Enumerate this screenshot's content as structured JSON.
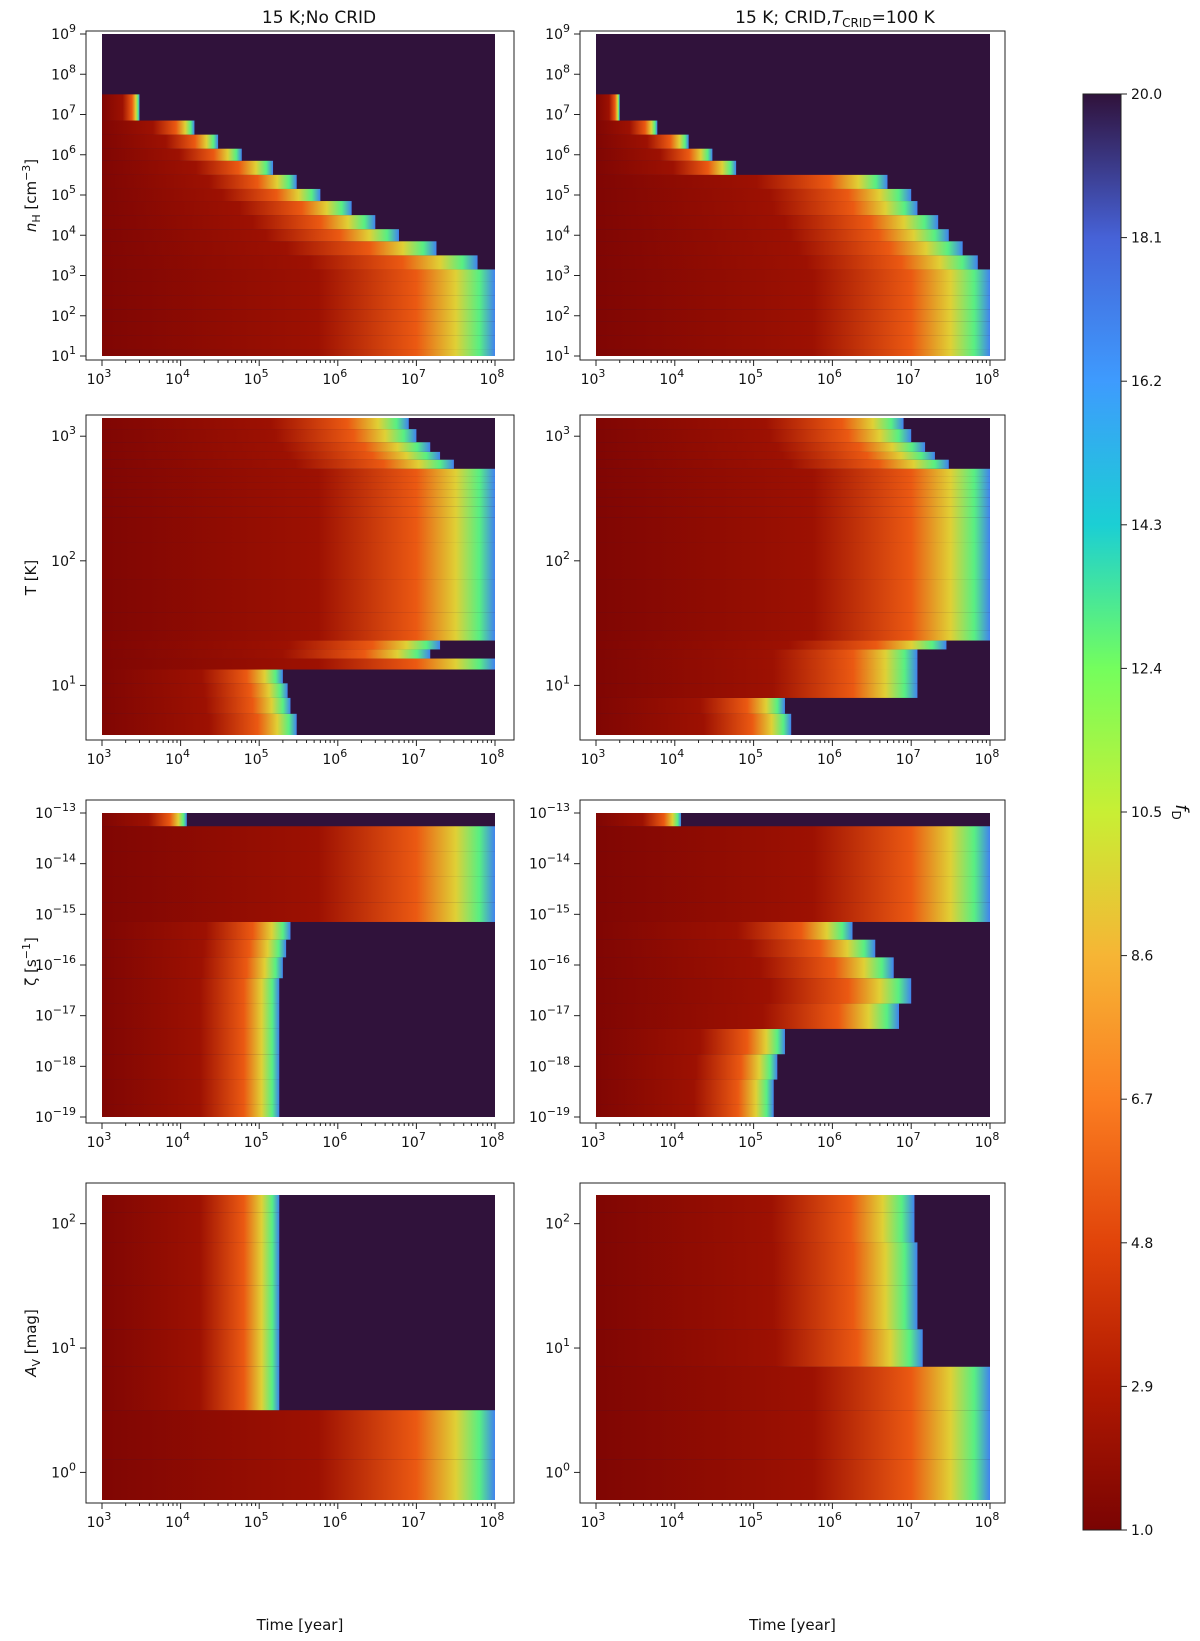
{
  "figure": {
    "colorbar": {
      "label_main": "f",
      "label_sub": "D",
      "min": 1.0,
      "max": 20.0,
      "ticks": [
        "20.0",
        "18.1",
        "16.2",
        "14.3",
        "12.4",
        "10.5",
        "8.6",
        "6.7",
        "4.8",
        "2.9",
        "1.0"
      ]
    },
    "column_titles": [
      {
        "text": "15 K;No CRID",
        "pre": "",
        "sub": "",
        "post": ""
      },
      {
        "text": "15 K; CRID,",
        "pre": "T",
        "sub": "CRID",
        "post": "=100 K"
      }
    ],
    "xlabel": "Time [year]",
    "x_ticks": [
      {
        "exp": "3",
        "base": "10"
      },
      {
        "exp": "4",
        "base": "10"
      },
      {
        "exp": "5",
        "base": "10"
      },
      {
        "exp": "6",
        "base": "10"
      },
      {
        "exp": "7",
        "base": "10"
      },
      {
        "exp": "8",
        "base": "10"
      }
    ],
    "rows": [
      {
        "ylabel_main": "n",
        "ylabel_sub": "H",
        "ylabel_post": " [cm",
        "ylabel_sup": "−3",
        "ylabel_end": "]",
        "y_ticks": [
          {
            "base": "10",
            "exp": "9"
          },
          {
            "base": "10",
            "exp": "8"
          },
          {
            "base": "10",
            "exp": "7"
          },
          {
            "base": "10",
            "exp": "6"
          },
          {
            "base": "10",
            "exp": "5"
          },
          {
            "base": "10",
            "exp": "4"
          },
          {
            "base": "10",
            "exp": "3"
          },
          {
            "base": "10",
            "exp": "2"
          },
          {
            "base": "10",
            "exp": "1"
          }
        ]
      },
      {
        "ylabel_main": "T [K]",
        "ylabel_sub": "",
        "ylabel_post": "",
        "ylabel_sup": "",
        "ylabel_end": "",
        "y_ticks": [
          {
            "base": "10",
            "exp": "3"
          },
          {
            "base": "10",
            "exp": "2"
          },
          {
            "base": "10",
            "exp": "1"
          }
        ]
      },
      {
        "ylabel_main": "ζ [s",
        "ylabel_sub": "",
        "ylabel_post": "",
        "ylabel_sup": "−1",
        "ylabel_end": "]",
        "y_ticks": [
          {
            "base": "10",
            "exp": "−13"
          },
          {
            "base": "10",
            "exp": "−14"
          },
          {
            "base": "10",
            "exp": "−15"
          },
          {
            "base": "10",
            "exp": "−16"
          },
          {
            "base": "10",
            "exp": "−17"
          },
          {
            "base": "10",
            "exp": "−18"
          },
          {
            "base": "10",
            "exp": "−19"
          }
        ]
      },
      {
        "ylabel_main": "A",
        "ylabel_sub": "V",
        "ylabel_post": " [mag]",
        "ylabel_sup": "",
        "ylabel_end": "",
        "y_ticks": [
          {
            "base": "10",
            "exp": "2"
          },
          {
            "base": "10",
            "exp": "1"
          },
          {
            "base": "10",
            "exp": "0"
          }
        ]
      }
    ]
  },
  "chart_data": {
    "type": "heatmap",
    "description_free": true,
    "x_scale": "log",
    "x_range_years": [
      1000,
      100000000
    ],
    "value_range": [
      1.0,
      20.0
    ],
    "panels": [
      {
        "row": 0,
        "col": 0,
        "y_scale": "log",
        "y_range": [
          10,
          1000000000
        ],
        "y_values": [
          10,
          20,
          50,
          100,
          200,
          500,
          1000,
          2000,
          5000,
          10000,
          20000,
          50000,
          100000,
          200000,
          500000,
          1000000,
          2000000,
          5000000,
          10000000,
          100000000,
          1000000000
        ],
        "transition_time_years": [
          100000000,
          100000000,
          100000000,
          100000000,
          100000000,
          100000000,
          100000000,
          60000000,
          18000000,
          6000000,
          3000000,
          1500000,
          600000,
          300000,
          150000,
          60000,
          30000,
          15000,
          3000,
          1000,
          1000
        ],
        "pre_value": 1.3,
        "post_value": 20.0
      },
      {
        "row": 0,
        "col": 1,
        "y_scale": "log",
        "y_range": [
          10,
          1000000000
        ],
        "y_values": [
          10,
          20,
          50,
          100,
          200,
          500,
          1000,
          2000,
          5000,
          10000,
          20000,
          50000,
          100000,
          200000,
          500000,
          1000000,
          2000000,
          5000000,
          10000000,
          100000000,
          1000000000
        ],
        "transition_time_years": [
          100000000,
          100000000,
          100000000,
          100000000,
          100000000,
          100000000,
          100000000,
          70000000,
          45000000,
          30000000,
          22000000,
          12000000,
          10000000,
          5000000,
          60000,
          30000,
          15000,
          6000,
          2000,
          1000,
          1000
        ],
        "pre_value": 1.3,
        "post_value": 20.0
      },
      {
        "row": 1,
        "col": 0,
        "y_scale": "log",
        "y_range": [
          4,
          1400
        ],
        "y_values": [
          5,
          7,
          9,
          12,
          15,
          18,
          21,
          25,
          30,
          50,
          100,
          200,
          250,
          300,
          350,
          400,
          450,
          500,
          600,
          700,
          800,
          1000,
          1300
        ],
        "transition_time_years": [
          300000,
          250000,
          230000,
          200000,
          100000000,
          15000000,
          20000000,
          100000000,
          100000000,
          100000000,
          100000000,
          100000000,
          100000000,
          100000000,
          100000000,
          100000000,
          100000000,
          100000000,
          30000000,
          20000000,
          15000000,
          10000000,
          8000000
        ],
        "pre_value": 1.3,
        "post_value": 20.0
      },
      {
        "row": 1,
        "col": 1,
        "y_scale": "log",
        "y_range": [
          4,
          1400
        ],
        "y_values": [
          5,
          7,
          9,
          12,
          15,
          18,
          21,
          25,
          30,
          50,
          100,
          200,
          250,
          300,
          350,
          400,
          450,
          500,
          600,
          700,
          800,
          1000,
          1300
        ],
        "transition_time_years": [
          300000,
          250000,
          12000000,
          12000000,
          12000000,
          12000000,
          28000000,
          100000000,
          100000000,
          100000000,
          100000000,
          100000000,
          100000000,
          100000000,
          100000000,
          100000000,
          100000000,
          100000000,
          30000000,
          20000000,
          15000000,
          10000000,
          8000000
        ],
        "pre_value": 1.3,
        "post_value": 20.0
      },
      {
        "row": 2,
        "col": 0,
        "y_scale": "log",
        "y_range": [
          1e-19,
          1e-13
        ],
        "y_values": [
          1e-19,
          3e-19,
          1e-18,
          3e-18,
          1e-17,
          3e-17,
          1e-16,
          2e-16,
          5e-16,
          1e-15,
          3e-15,
          1e-14,
          3e-14,
          1e-13
        ],
        "transition_time_years": [
          180000,
          180000,
          180000,
          180000,
          180000,
          180000,
          200000,
          220000,
          250000,
          100000000,
          100000000,
          100000000,
          100000000,
          12000
        ],
        "pre_value": 1.3,
        "post_value": 20.0
      },
      {
        "row": 2,
        "col": 1,
        "y_scale": "log",
        "y_range": [
          1e-19,
          1e-13
        ],
        "y_values": [
          1e-19,
          3e-19,
          1e-18,
          3e-18,
          1e-17,
          3e-17,
          1e-16,
          2e-16,
          5e-16,
          1e-15,
          3e-15,
          1e-14,
          3e-14,
          1e-13
        ],
        "transition_time_years": [
          180000,
          180000,
          200000,
          250000,
          7000000,
          10000000,
          6000000,
          3500000,
          1800000,
          100000000,
          100000000,
          100000000,
          100000000,
          12000
        ],
        "pre_value": 1.3,
        "post_value": 20.0
      },
      {
        "row": 3,
        "col": 0,
        "y_scale": "log",
        "y_range": [
          0.6,
          170
        ],
        "y_values": [
          0.8,
          2,
          5,
          10,
          20,
          50,
          100,
          150
        ],
        "transition_time_years": [
          100000000,
          100000000,
          180000,
          180000,
          180000,
          180000,
          180000,
          180000
        ],
        "pre_value": 1.3,
        "post_value": 20.0
      },
      {
        "row": 3,
        "col": 1,
        "y_scale": "log",
        "y_range": [
          0.6,
          170
        ],
        "y_values": [
          0.8,
          2,
          5,
          10,
          20,
          50,
          100,
          150
        ],
        "transition_time_years": [
          100000000,
          100000000,
          100000000,
          14000000,
          12000000,
          12000000,
          11000000,
          11000000
        ],
        "pre_value": 1.3,
        "post_value": 20.0
      }
    ]
  }
}
